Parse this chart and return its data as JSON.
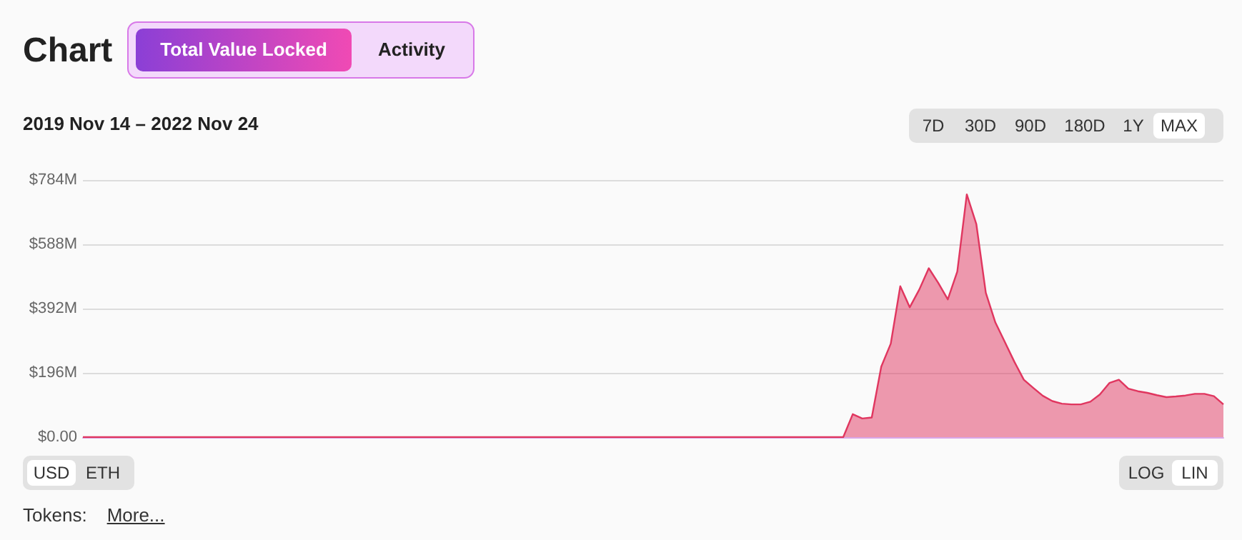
{
  "chart_data": {
    "type": "area",
    "title": "Chart",
    "subtitle": "2019 Nov 14 – 2022 Nov 24",
    "annotations": [
      "Total Value Locked",
      "Activity",
      "7D",
      "30D",
      "90D",
      "180D",
      "1Y",
      "MAX",
      "USD",
      "ETH",
      "LOG",
      "LIN",
      "Tokens:",
      "More..."
    ],
    "categories": [
      null,
      null,
      null,
      null,
      null,
      null,
      null,
      null,
      null,
      null,
      null,
      null,
      null,
      null,
      null,
      null,
      null,
      null,
      null,
      null,
      null,
      null,
      null,
      null,
      null,
      null,
      null,
      null,
      null,
      null,
      null,
      null,
      null,
      null,
      null,
      null,
      null,
      null,
      null,
      null,
      null,
      null,
      null,
      null,
      null,
      null,
      null,
      null,
      null,
      null,
      null,
      null,
      null,
      null,
      null,
      null,
      null,
      null,
      null,
      null,
      null,
      null,
      null,
      null,
      null,
      null,
      null,
      null,
      null,
      null,
      null,
      null,
      null,
      null,
      null,
      null,
      null,
      null,
      null,
      null,
      null,
      null,
      null,
      null,
      null,
      null,
      null,
      null,
      null,
      null,
      null,
      null,
      null,
      null,
      null,
      null,
      null,
      null,
      null,
      null,
      null,
      null,
      null,
      null,
      null,
      null,
      null,
      null,
      null,
      null,
      null,
      null,
      null,
      null,
      null,
      null,
      null,
      null,
      null,
      null,
      null
    ],
    "series": [
      {
        "color": "#e0365f",
        "values": [
          0,
          0,
          0,
          0,
          0,
          0,
          0,
          0,
          0,
          0,
          0,
          0,
          0,
          0,
          0,
          0,
          0,
          0,
          0,
          0,
          0,
          0,
          0,
          0,
          0,
          0,
          0,
          0,
          0,
          0,
          0,
          0,
          0,
          0,
          0,
          0,
          0,
          0,
          0,
          0,
          0,
          0,
          0,
          0,
          0,
          0,
          0,
          0,
          0,
          0,
          0,
          0,
          0,
          0,
          0,
          0,
          0,
          0,
          0,
          0,
          0,
          0,
          0,
          0,
          0,
          0,
          0,
          0,
          0,
          0,
          0,
          0,
          0,
          0,
          0,
          0,
          0,
          0,
          0,
          0,
          0,
          70,
          57,
          60,
          215,
          285,
          460,
          396,
          450,
          515,
          470,
          420,
          505,
          740,
          650,
          440,
          350,
          290,
          230,
          175,
          150,
          126,
          110,
          102,
          100,
          100,
          108,
          130,
          165,
          175,
          148,
          140,
          135,
          128,
          122,
          124,
          127,
          132,
          132,
          125,
          100
        ]
      }
    ],
    "ylim": [
      0,
      784
    ],
    "yticks": [
      {
        "value": 0,
        "label": "$0.00"
      },
      {
        "value": 196,
        "label": "$196M"
      },
      {
        "value": 392,
        "label": "$392M"
      },
      {
        "value": 588,
        "label": "$588M"
      },
      {
        "value": 784,
        "label": "$784M"
      }
    ],
    "tick_labels": "y",
    "grid": "y",
    "line_style": "solid"
  }
}
